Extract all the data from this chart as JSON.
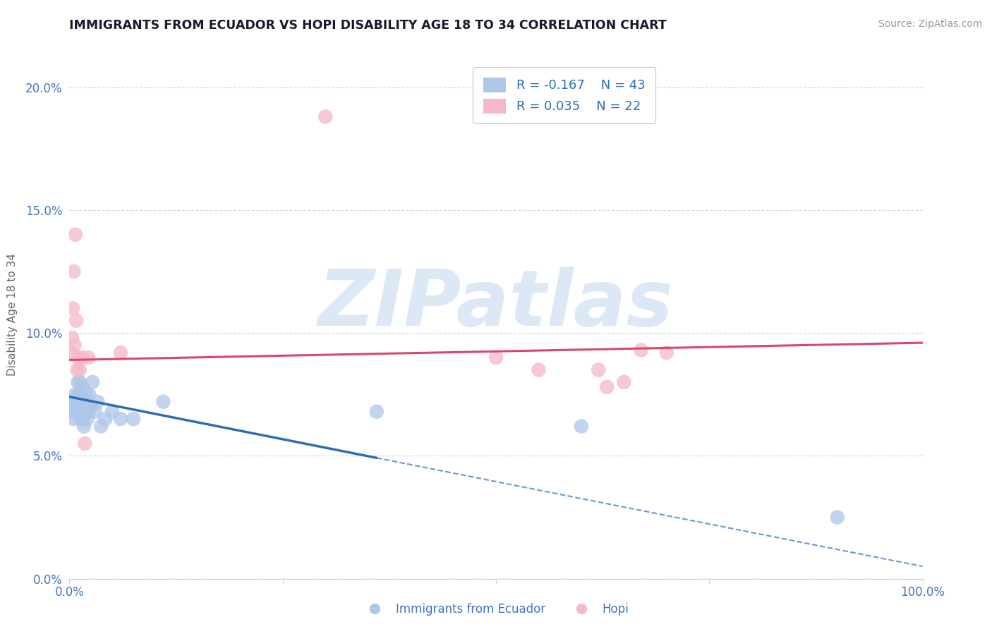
{
  "title": "IMMIGRANTS FROM ECUADOR VS HOPI DISABILITY AGE 18 TO 34 CORRELATION CHART",
  "source_text": "Source: ZipAtlas.com",
  "ylabel": "Disability Age 18 to 34",
  "xlim": [
    0.0,
    1.0
  ],
  "ylim": [
    0.0,
    0.215
  ],
  "yticks": [
    0.0,
    0.05,
    0.1,
    0.15,
    0.2
  ],
  "ytick_labels": [
    "0.0%",
    "5.0%",
    "10.0%",
    "15.0%",
    "20.0%"
  ],
  "xticks": [
    0.0,
    0.25,
    0.5,
    0.75,
    1.0
  ],
  "xtick_labels": [
    "0.0%",
    "",
    "",
    "",
    "100.0%"
  ],
  "legend_r1": "R = -0.167",
  "legend_n1": "N = 43",
  "legend_r2": "R = 0.035",
  "legend_n2": "N = 22",
  "series1_color": "#aec6e8",
  "series2_color": "#f5b8c8",
  "trend1_color": "#2e6db4",
  "trend2_color": "#d9476a",
  "watermark": "ZIPatlas",
  "watermark_color": "#dce8f5",
  "background_color": "#ffffff",
  "title_color": "#1a1a2e",
  "axis_color": "#4472c4",
  "grid_color": "#c8d8e8",
  "blue_points_x": [
    0.002,
    0.003,
    0.004,
    0.005,
    0.006,
    0.007,
    0.007,
    0.008,
    0.009,
    0.01,
    0.01,
    0.011,
    0.012,
    0.012,
    0.013,
    0.013,
    0.014,
    0.014,
    0.015,
    0.015,
    0.016,
    0.016,
    0.017,
    0.017,
    0.018,
    0.019,
    0.02,
    0.021,
    0.022,
    0.023,
    0.025,
    0.027,
    0.03,
    0.033,
    0.037,
    0.042,
    0.05,
    0.06,
    0.075,
    0.11,
    0.36,
    0.6,
    0.9
  ],
  "blue_points_y": [
    0.068,
    0.07,
    0.072,
    0.065,
    0.073,
    0.068,
    0.075,
    0.068,
    0.07,
    0.073,
    0.08,
    0.075,
    0.08,
    0.075,
    0.07,
    0.065,
    0.073,
    0.065,
    0.068,
    0.078,
    0.072,
    0.065,
    0.068,
    0.062,
    0.068,
    0.075,
    0.072,
    0.065,
    0.068,
    0.075,
    0.07,
    0.08,
    0.068,
    0.072,
    0.062,
    0.065,
    0.068,
    0.065,
    0.065,
    0.072,
    0.068,
    0.062,
    0.025
  ],
  "pink_points_x": [
    0.002,
    0.003,
    0.004,
    0.005,
    0.006,
    0.007,
    0.008,
    0.009,
    0.01,
    0.012,
    0.015,
    0.018,
    0.022,
    0.06,
    0.3,
    0.5,
    0.55,
    0.62,
    0.63,
    0.65,
    0.67,
    0.7
  ],
  "pink_points_y": [
    0.092,
    0.098,
    0.11,
    0.125,
    0.095,
    0.14,
    0.105,
    0.085,
    0.09,
    0.085,
    0.09,
    0.055,
    0.09,
    0.092,
    0.188,
    0.09,
    0.085,
    0.085,
    0.078,
    0.08,
    0.093,
    0.092
  ],
  "trend1_y_start": 0.074,
  "trend1_y_end": 0.005,
  "trend1_solid_end_x": 0.36,
  "trend2_y_start": 0.089,
  "trend2_y_end": 0.096
}
